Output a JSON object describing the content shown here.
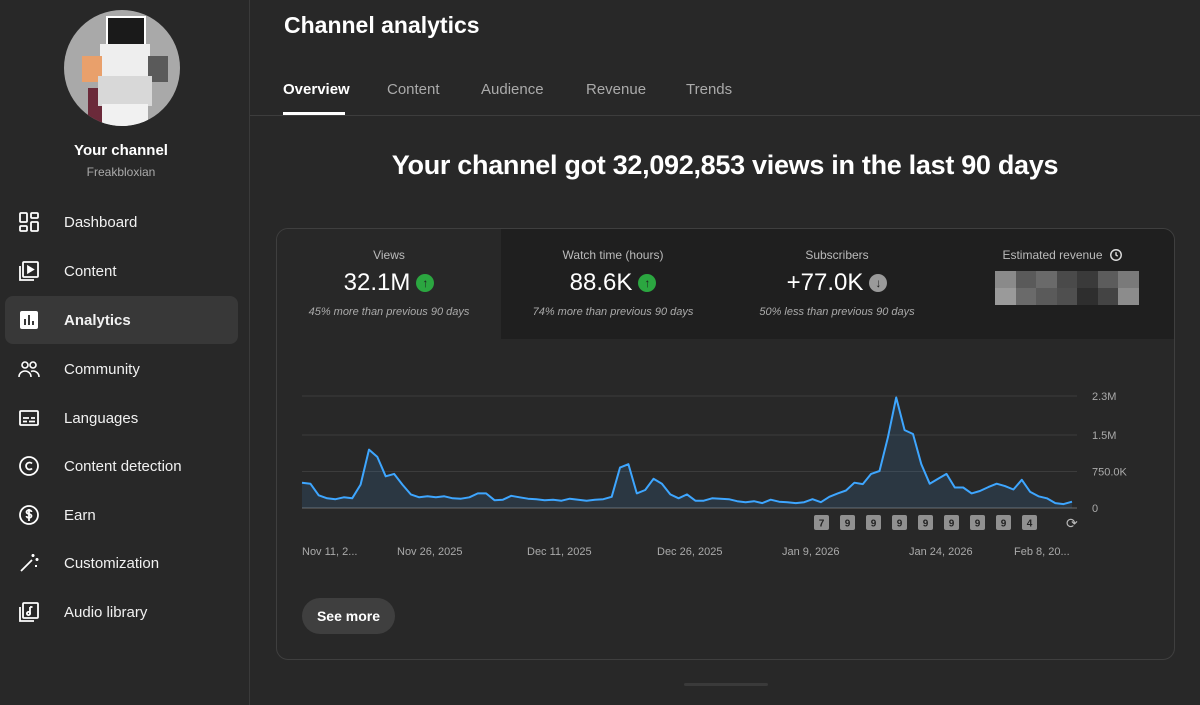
{
  "sidebar": {
    "channel_title": "Your channel",
    "channel_handle": "Freakbloxian",
    "items": [
      {
        "id": "dashboard",
        "label": "Dashboard",
        "icon": "dashboard-icon"
      },
      {
        "id": "content",
        "label": "Content",
        "icon": "content-icon"
      },
      {
        "id": "analytics",
        "label": "Analytics",
        "icon": "analytics-icon",
        "active": true
      },
      {
        "id": "community",
        "label": "Community",
        "icon": "community-icon"
      },
      {
        "id": "languages",
        "label": "Languages",
        "icon": "languages-icon"
      },
      {
        "id": "content-detection",
        "label": "Content detection",
        "icon": "copyright-icon"
      },
      {
        "id": "earn",
        "label": "Earn",
        "icon": "dollar-icon"
      },
      {
        "id": "customization",
        "label": "Customization",
        "icon": "magic-wand-icon"
      },
      {
        "id": "audio-library",
        "label": "Audio library",
        "icon": "audio-library-icon"
      }
    ]
  },
  "main": {
    "title": "Channel analytics",
    "tabs": [
      {
        "label": "Overview",
        "active": true
      },
      {
        "label": "Content"
      },
      {
        "label": "Audience"
      },
      {
        "label": "Revenue"
      },
      {
        "label": "Trends"
      }
    ],
    "headline": "Your channel got 32,092,853 views in the last 90 days",
    "metrics": [
      {
        "label": "Views",
        "value": "32.1M",
        "trend": "up",
        "note": "45% more than previous 90 days"
      },
      {
        "label": "Watch time (hours)",
        "value": "88.6K",
        "trend": "up",
        "note": "74% more than previous 90 days"
      },
      {
        "label": "Subscribers",
        "value": "+77.0K",
        "trend": "down",
        "note": "50% less than previous 90 days"
      },
      {
        "label": "Estimated revenue",
        "value": "",
        "icon": "clock-icon"
      }
    ],
    "see_more_label": "See more"
  },
  "colors": {
    "accent_line": "#3ea6ff",
    "trend_up": "#2ba640",
    "trend_down": "#9a9a9a",
    "background": "#282828"
  },
  "chart_data": {
    "type": "area",
    "ylim": [
      0,
      2300000
    ],
    "y_ticks": [
      {
        "value": 0,
        "label": "0"
      },
      {
        "value": 750000,
        "label": "750.0K"
      },
      {
        "value": 1500000,
        "label": "1.5M"
      },
      {
        "value": 2300000,
        "label": "2.3M"
      }
    ],
    "x_tick_labels": [
      "Nov 11, 2...",
      "Nov 26, 2025",
      "Dec 11, 2025",
      "Dec 26, 2025",
      "Jan 9, 2026",
      "Jan 24, 2026",
      "Feb 8, 20..."
    ],
    "values": [
      520000,
      500000,
      260000,
      200000,
      180000,
      220000,
      200000,
      480000,
      1200000,
      1050000,
      650000,
      700000,
      480000,
      280000,
      220000,
      240000,
      220000,
      240000,
      200000,
      190000,
      220000,
      300000,
      300000,
      160000,
      170000,
      250000,
      220000,
      190000,
      180000,
      160000,
      170000,
      150000,
      190000,
      170000,
      150000,
      170000,
      180000,
      230000,
      830000,
      900000,
      300000,
      370000,
      600000,
      500000,
      280000,
      200000,
      280000,
      150000,
      150000,
      200000,
      190000,
      180000,
      140000,
      120000,
      140000,
      100000,
      170000,
      130000,
      120000,
      100000,
      120000,
      180000,
      120000,
      230000,
      300000,
      360000,
      520000,
      490000,
      700000,
      760000,
      1450000,
      2270000,
      1600000,
      1520000,
      900000,
      500000,
      600000,
      700000,
      420000,
      420000,
      300000,
      350000,
      430000,
      500000,
      450000,
      380000,
      580000,
      330000,
      240000,
      200000,
      100000,
      80000,
      130000
    ],
    "markers": [
      "7",
      "9",
      "9",
      "9",
      "9",
      "9",
      "9",
      "9",
      "4"
    ]
  }
}
